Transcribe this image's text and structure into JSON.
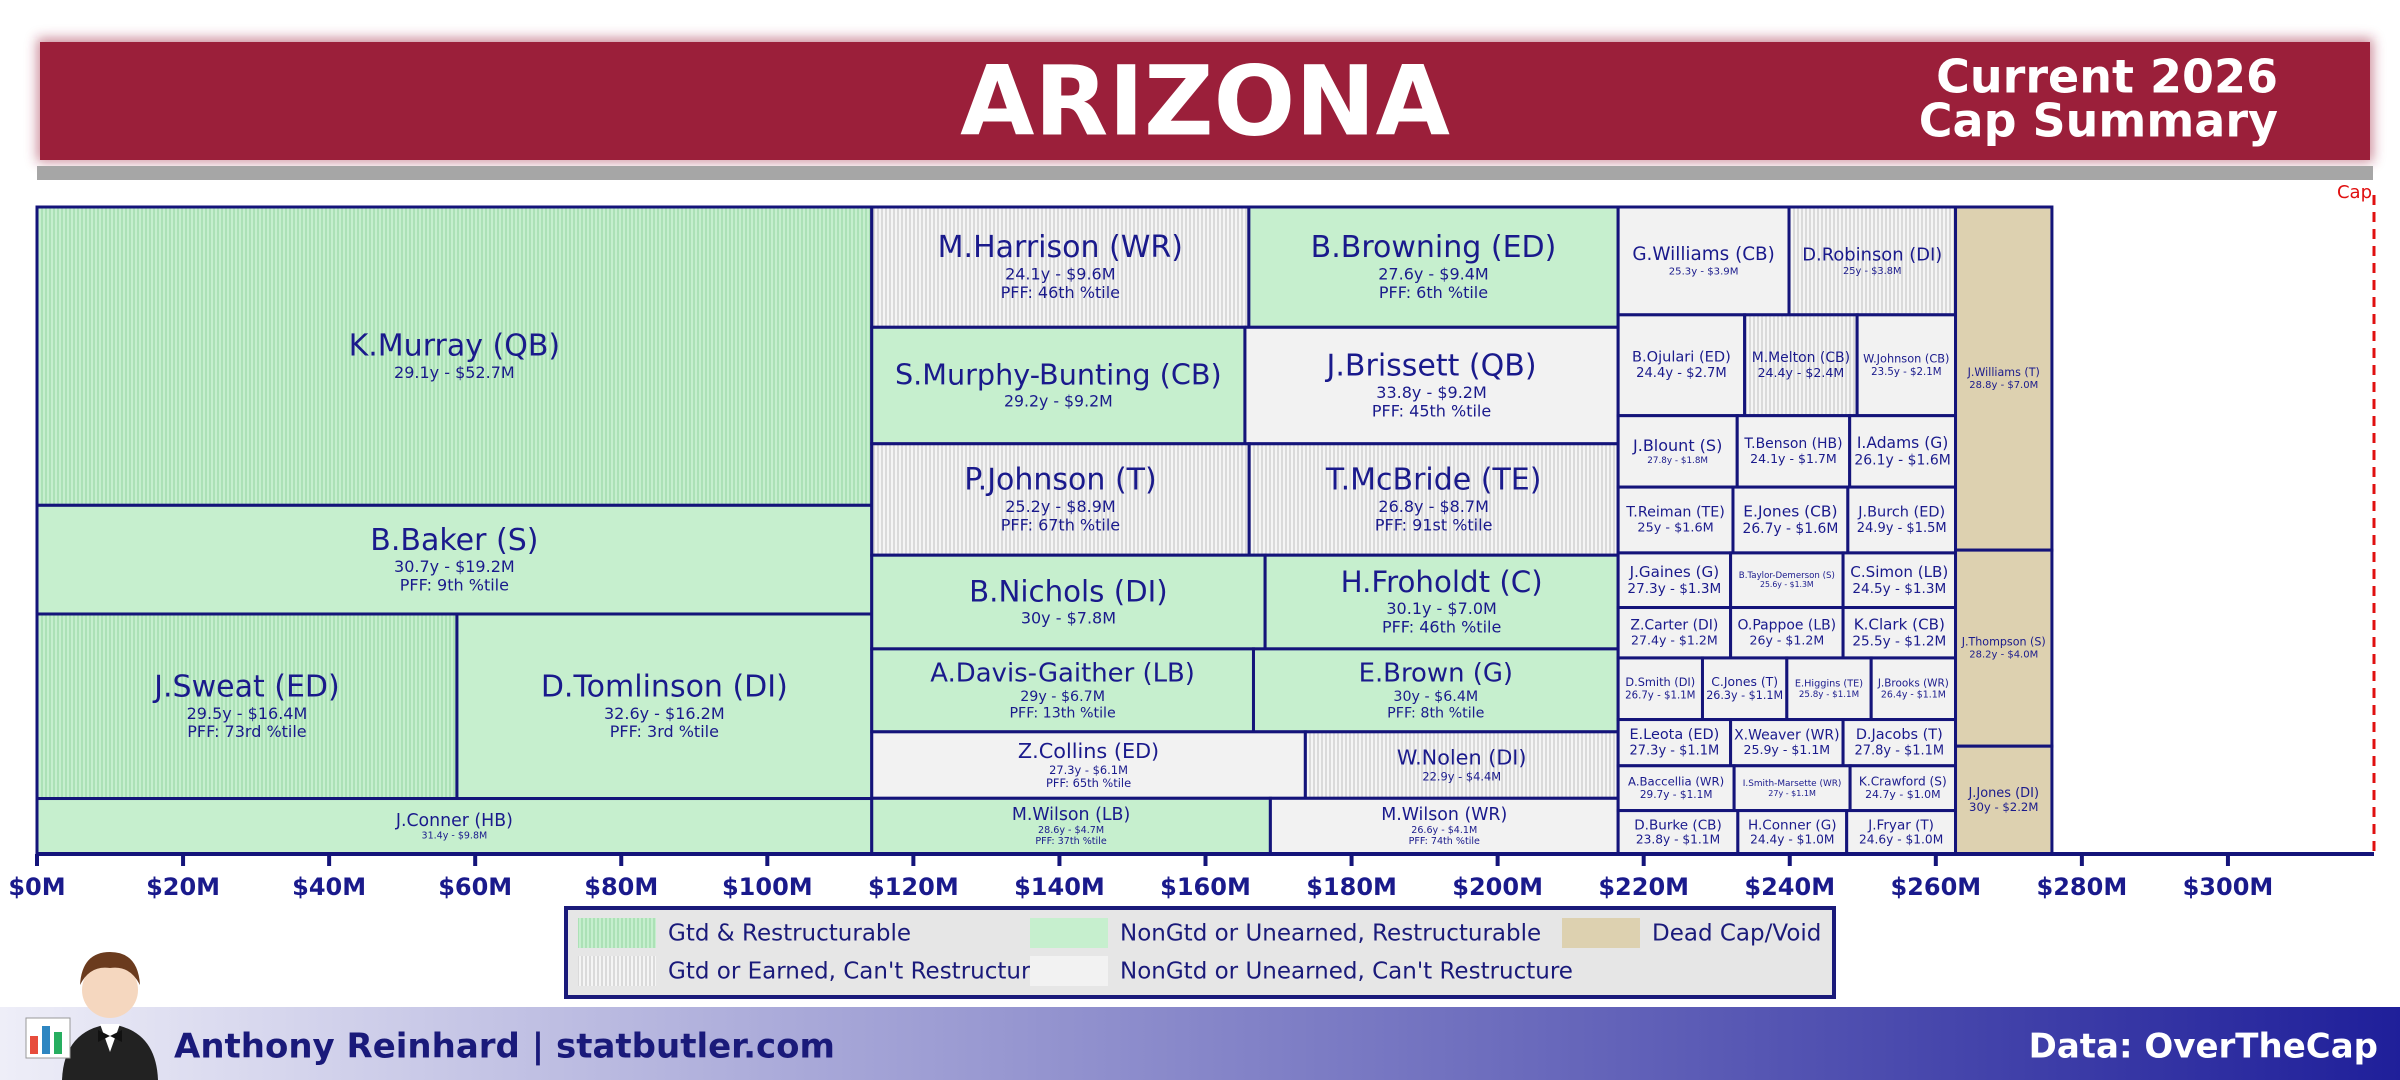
{
  "chart_data": {
    "type": "treemap",
    "title": "ARIZONA",
    "subtitle": [
      "Current 2026",
      "Cap Summary"
    ],
    "xlim": [
      0,
      320
    ],
    "xticks": [
      {
        "value": 0,
        "label": "$0M"
      },
      {
        "value": 20,
        "label": "$20M"
      },
      {
        "value": 40,
        "label": "$40M"
      },
      {
        "value": 60,
        "label": "$60M"
      },
      {
        "value": 80,
        "label": "$80M"
      },
      {
        "value": 100,
        "label": "$100M"
      },
      {
        "value": 120,
        "label": "$120M"
      },
      {
        "value": 140,
        "label": "$140M"
      },
      {
        "value": 160,
        "label": "$160M"
      },
      {
        "value": 180,
        "label": "$180M"
      },
      {
        "value": 200,
        "label": "$200M"
      },
      {
        "value": 220,
        "label": "$220M"
      },
      {
        "value": 240,
        "label": "$240M"
      },
      {
        "value": 260,
        "label": "$260M"
      },
      {
        "value": 280,
        "label": "$280M"
      },
      {
        "value": 300,
        "label": "$300M"
      }
    ],
    "cap": {
      "value": 320,
      "label": "Cap"
    },
    "legend": [
      {
        "name": "Gtd & Restructurable",
        "color": "#c6efce",
        "striped": true
      },
      {
        "name": "NonGtd or Unearned, Restructurable",
        "color": "#c6efce",
        "striped": false
      },
      {
        "name": "Dead Cap/Void",
        "color": "#ddd1b0",
        "striped": false
      },
      {
        "name": "Gtd or Earned, Can't Restructure",
        "color": "#f2f2f2",
        "striped": true
      },
      {
        "name": "NonGtd or Unearned, Can't Restructure",
        "color": "#f2f2f2",
        "striped": false
      }
    ],
    "columns": [
      {
        "rows": [
          [
            {
              "name": "K.Murray (QB)",
              "detail": "29.1y - $52.7M",
              "value": 52.7,
              "cat": 0
            }
          ],
          [
            {
              "name": "B.Baker (S)",
              "detail": "30.7y - $19.2M",
              "pff": "PFF: 9th %tile",
              "value": 19.2,
              "cat": 1
            }
          ],
          [
            {
              "name": "J.Sweat (ED)",
              "detail": "29.5y - $16.4M",
              "pff": "PFF: 73rd %tile",
              "value": 16.4,
              "cat": 0
            },
            {
              "name": "D.Tomlinson (DI)",
              "detail": "32.6y - $16.2M",
              "pff": "PFF: 3rd %tile",
              "value": 16.2,
              "cat": 1
            }
          ],
          [
            {
              "name": "J.Conner (HB)",
              "detail": "31.4y - $9.8M",
              "value": 9.8,
              "cat": 1
            }
          ]
        ]
      },
      {
        "rows": [
          [
            {
              "name": "M.Harrison (WR)",
              "detail": "24.1y - $9.6M",
              "pff": "PFF: 46th %tile",
              "value": 9.6,
              "cat": 3
            },
            {
              "name": "B.Browning (ED)",
              "detail": "27.6y - $9.4M",
              "pff": "PFF: 6th %tile",
              "value": 9.4,
              "cat": 1
            }
          ],
          [
            {
              "name": "S.Murphy-Bunting (CB)",
              "detail": "29.2y - $9.2M",
              "value": 9.2,
              "cat": 1
            },
            {
              "name": "J.Brissett (QB)",
              "detail": "33.8y - $9.2M",
              "pff": "PFF: 45th %tile",
              "value": 9.2,
              "cat": 4
            }
          ],
          [
            {
              "name": "P.Johnson (T)",
              "detail": "25.2y - $8.9M",
              "pff": "PFF: 67th %tile",
              "value": 8.9,
              "cat": 3
            },
            {
              "name": "T.McBride (TE)",
              "detail": "26.8y - $8.7M",
              "pff": "PFF: 91st %tile",
              "value": 8.7,
              "cat": 3
            }
          ],
          [
            {
              "name": "B.Nichols (DI)",
              "detail": "30y - $7.8M",
              "value": 7.8,
              "cat": 1
            },
            {
              "name": "H.Froholdt (C)",
              "detail": "30.1y - $7.0M",
              "pff": "PFF: 46th %tile",
              "value": 7.0,
              "cat": 1
            }
          ],
          [
            {
              "name": "A.Davis-Gaither (LB)",
              "detail": "29y - $6.7M",
              "pff": "PFF: 13th %tile",
              "value": 6.7,
              "cat": 1
            },
            {
              "name": "E.Brown (G)",
              "detail": "30y - $6.4M",
              "pff": "PFF: 8th %tile",
              "value": 6.4,
              "cat": 1
            }
          ],
          [
            {
              "name": "Z.Collins (ED)",
              "detail": "27.3y - $6.1M",
              "pff": "PFF: 65th %tile",
              "value": 6.1,
              "cat": 4
            },
            {
              "name": "W.Nolen (DI)",
              "detail": "22.9y - $4.4M",
              "value": 4.4,
              "cat": 3
            }
          ],
          [
            {
              "name": "M.Wilson (LB)",
              "detail": "28.6y - $4.7M",
              "pff": "PFF: 37th %tile",
              "value": 4.7,
              "cat": 1
            },
            {
              "name": "M.Wilson (WR)",
              "detail": "26.6y - $4.1M",
              "pff": "PFF: 74th %tile",
              "value": 4.1,
              "cat": 4
            }
          ]
        ]
      },
      {
        "rows": [
          [
            {
              "name": "G.Williams (CB)",
              "detail": "25.3y - $3.9M",
              "value": 3.9,
              "cat": 4
            },
            {
              "name": "D.Robinson (DI)",
              "detail": "25y - $3.8M",
              "value": 3.8,
              "cat": 3
            }
          ],
          [
            {
              "name": "B.Ojulari (ED)",
              "detail": "24.4y - $2.7M",
              "value": 2.7,
              "cat": 4
            },
            {
              "name": "M.Melton (CB)",
              "detail": "24.4y - $2.4M",
              "value": 2.4,
              "cat": 3
            },
            {
              "name": "W.Johnson (CB)",
              "detail": "23.5y - $2.1M",
              "value": 2.1,
              "cat": 4
            }
          ],
          [
            {
              "name": "J.Blount (S)",
              "detail": "27.8y - $1.8M",
              "value": 1.8,
              "cat": 4
            },
            {
              "name": "T.Benson (HB)",
              "detail": "24.1y - $1.7M",
              "value": 1.7,
              "cat": 4
            },
            {
              "name": "I.Adams (G)",
              "detail": "26.1y - $1.6M",
              "value": 1.6,
              "cat": 4
            }
          ],
          [
            {
              "name": "T.Reiman (TE)",
              "detail": "25y - $1.6M",
              "value": 1.6,
              "cat": 4
            },
            {
              "name": "E.Jones (CB)",
              "detail": "26.7y - $1.6M",
              "value": 1.6,
              "cat": 4
            },
            {
              "name": "J.Burch (ED)",
              "detail": "24.9y - $1.5M",
              "value": 1.5,
              "cat": 4
            }
          ],
          [
            {
              "name": "J.Gaines (G)",
              "detail": "27.3y - $1.3M",
              "value": 1.3,
              "cat": 4
            },
            {
              "name": "B.Taylor-Demerson (S)",
              "detail": "25.6y - $1.3M",
              "value": 1.3,
              "cat": 4
            },
            {
              "name": "C.Simon (LB)",
              "detail": "24.5y - $1.3M",
              "value": 1.3,
              "cat": 4
            }
          ],
          [
            {
              "name": "Z.Carter (DI)",
              "detail": "27.4y - $1.2M",
              "value": 1.2,
              "cat": 4
            },
            {
              "name": "O.Pappoe (LB)",
              "detail": "26y - $1.2M",
              "value": 1.2,
              "cat": 4
            },
            {
              "name": "K.Clark (CB)",
              "detail": "25.5y - $1.2M",
              "value": 1.2,
              "cat": 4
            }
          ],
          [
            {
              "name": "D.Smith (DI)",
              "detail": "26.7y - $1.1M",
              "value": 1.1,
              "cat": 4
            },
            {
              "name": "C.Jones (T)",
              "detail": "26.3y - $1.1M",
              "value": 1.1,
              "cat": 4
            },
            {
              "name": "E.Higgins (TE)",
              "detail": "25.8y - $1.1M",
              "value": 1.1,
              "cat": 4
            },
            {
              "name": "J.Brooks (WR)",
              "detail": "26.4y - $1.1M",
              "value": 1.1,
              "cat": 4
            }
          ],
          [
            {
              "name": "E.Leota (ED)",
              "detail": "27.3y - $1.1M",
              "value": 1.1,
              "cat": 4
            },
            {
              "name": "X.Weaver (WR)",
              "detail": "25.9y - $1.1M",
              "value": 1.1,
              "cat": 4
            },
            {
              "name": "D.Jacobs (T)",
              "detail": "27.8y - $1.1M",
              "value": 1.1,
              "cat": 4
            }
          ],
          [
            {
              "name": "A.Baccellia (WR)",
              "detail": "29.7y - $1.1M",
              "value": 1.1,
              "cat": 4
            },
            {
              "name": "I.Smith-Marsette (WR)",
              "detail": "27y - $1.1M",
              "value": 1.1,
              "cat": 4
            },
            {
              "name": "K.Crawford (S)",
              "detail": "24.7y - $1.0M",
              "value": 1.0,
              "cat": 4
            }
          ],
          [
            {
              "name": "D.Burke (CB)",
              "detail": "23.8y - $1.1M",
              "value": 1.1,
              "cat": 4
            },
            {
              "name": "H.Conner (G)",
              "detail": "24.4y - $1.0M",
              "value": 1.0,
              "cat": 4
            },
            {
              "name": "J.Fryar (T)",
              "detail": "24.6y - $1.0M",
              "value": 1.0,
              "cat": 4
            }
          ]
        ]
      },
      {
        "rows": [
          [
            {
              "name": "J.Williams (T)",
              "detail": "28.8y - $7.0M",
              "value": 7.0,
              "cat": 2
            }
          ],
          [
            {
              "name": "J.Thompson (S)",
              "detail": "28.2y - $4.0M",
              "value": 4.0,
              "cat": 2
            }
          ],
          [
            {
              "name": "J.Jones (DI)",
              "detail": "30y - $2.2M",
              "value": 2.2,
              "cat": 2
            }
          ]
        ]
      }
    ],
    "footer": {
      "credit": "Anthony Reinhard  |  statbutler.com",
      "source": "Data: OverTheCap"
    }
  }
}
